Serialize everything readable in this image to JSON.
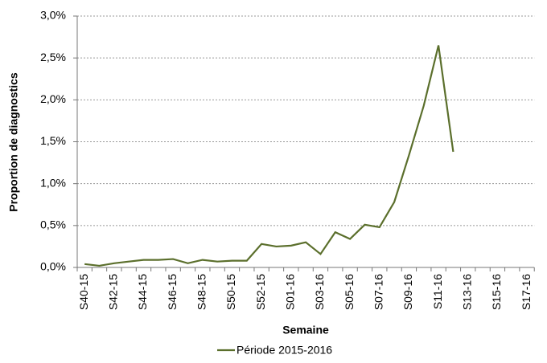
{
  "chart_data": {
    "type": "line",
    "y_label": "Proportion de diagnostics",
    "x_label": "Semaine",
    "categories": [
      "S40-15",
      null,
      "S42-15",
      null,
      "S44-15",
      null,
      "S46-15",
      null,
      "S48-15",
      null,
      "S50-15",
      null,
      "S52-15",
      null,
      "S01-16",
      null,
      "S03-16",
      null,
      "S05-16",
      null,
      "S07-16",
      null,
      "S09-16",
      null,
      "S11-16",
      null,
      "S13-16",
      null,
      "S15-16",
      null,
      "S17-16"
    ],
    "series": [
      {
        "name": "Période 2015-2016",
        "color": "#5b6f2c",
        "values": [
          0.04,
          0.02,
          0.05,
          0.07,
          0.09,
          0.09,
          0.1,
          0.05,
          0.09,
          0.07,
          0.08,
          0.08,
          0.28,
          0.25,
          0.26,
          0.3,
          0.16,
          0.42,
          0.34,
          0.51,
          0.48,
          0.78,
          1.34,
          1.93,
          2.65,
          1.38,
          null,
          null,
          null,
          null,
          null
        ]
      }
    ],
    "ylim": [
      0,
      3
    ],
    "yticks": [
      {
        "value": 0,
        "label": "0,0%"
      },
      {
        "value": 0.5,
        "label": "0,5%"
      },
      {
        "value": 1,
        "label": "1,0%"
      },
      {
        "value": 1.5,
        "label": "1,5%"
      },
      {
        "value": 2,
        "label": "2,0%"
      },
      {
        "value": 2.5,
        "label": "2,5%"
      },
      {
        "value": 3,
        "label": "3,0%"
      }
    ],
    "grid": true,
    "legend": "bottom"
  }
}
